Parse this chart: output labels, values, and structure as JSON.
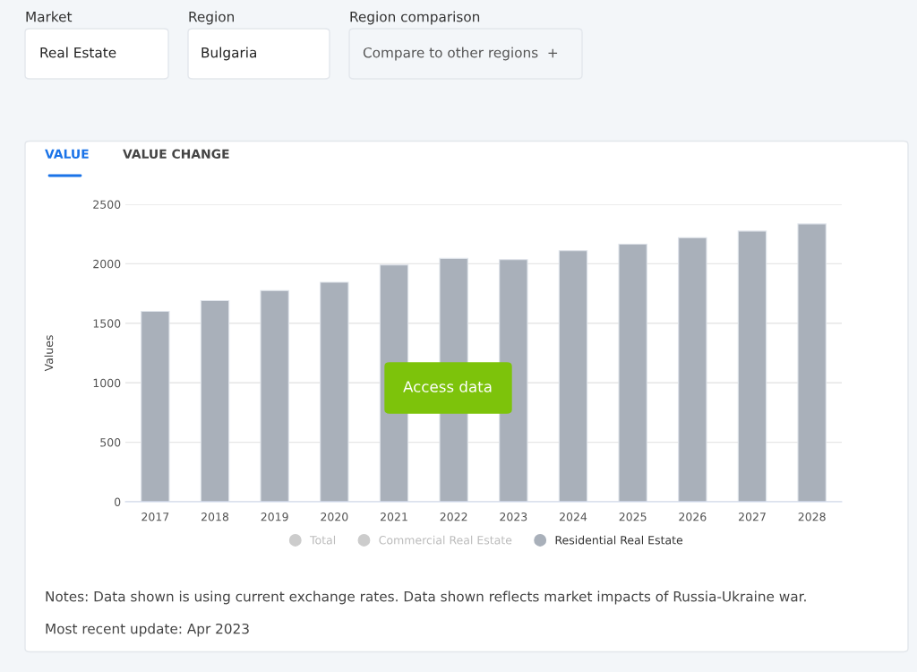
{
  "chart_data": {
    "type": "bar",
    "ylabel": "Values",
    "categories": [
      "2017",
      "2018",
      "2019",
      "2020",
      "2021",
      "2022",
      "2023",
      "2024",
      "2025",
      "2026",
      "2027",
      "2028"
    ],
    "series": [
      {
        "name": "Total",
        "color": "#cccccc",
        "values": [
          null,
          null,
          null,
          null,
          null,
          null,
          null,
          null,
          null,
          null,
          null,
          null
        ]
      },
      {
        "name": "Commercial Real Estate",
        "color": "#cccccc",
        "values": [
          null,
          null,
          null,
          null,
          null,
          null,
          null,
          null,
          null,
          null,
          null,
          null
        ]
      },
      {
        "name": "Residential Real Estate",
        "color": "#a9b0ba",
        "values": [
          1600,
          1690,
          1775,
          1845,
          1990,
          2045,
          2035,
          2110,
          2165,
          2220,
          2275,
          2335
        ]
      }
    ],
    "ylim": [
      0,
      2500
    ],
    "yticks": [
      0,
      500,
      1000,
      1500,
      2000,
      2500
    ],
    "grid": "y",
    "legend": "bottom",
    "annotations": [
      "Market",
      "Real Estate",
      "Region",
      "Bulgaria",
      "Region comparison",
      "Compare to other regions  +",
      "VALUE",
      "VALUE CHANGE",
      "Access data",
      "Notes: Data shown is using current exchange rates. Data shown reflects market impacts of Russia-Ukraine war.",
      "Most recent update: Apr 2023"
    ]
  }
}
